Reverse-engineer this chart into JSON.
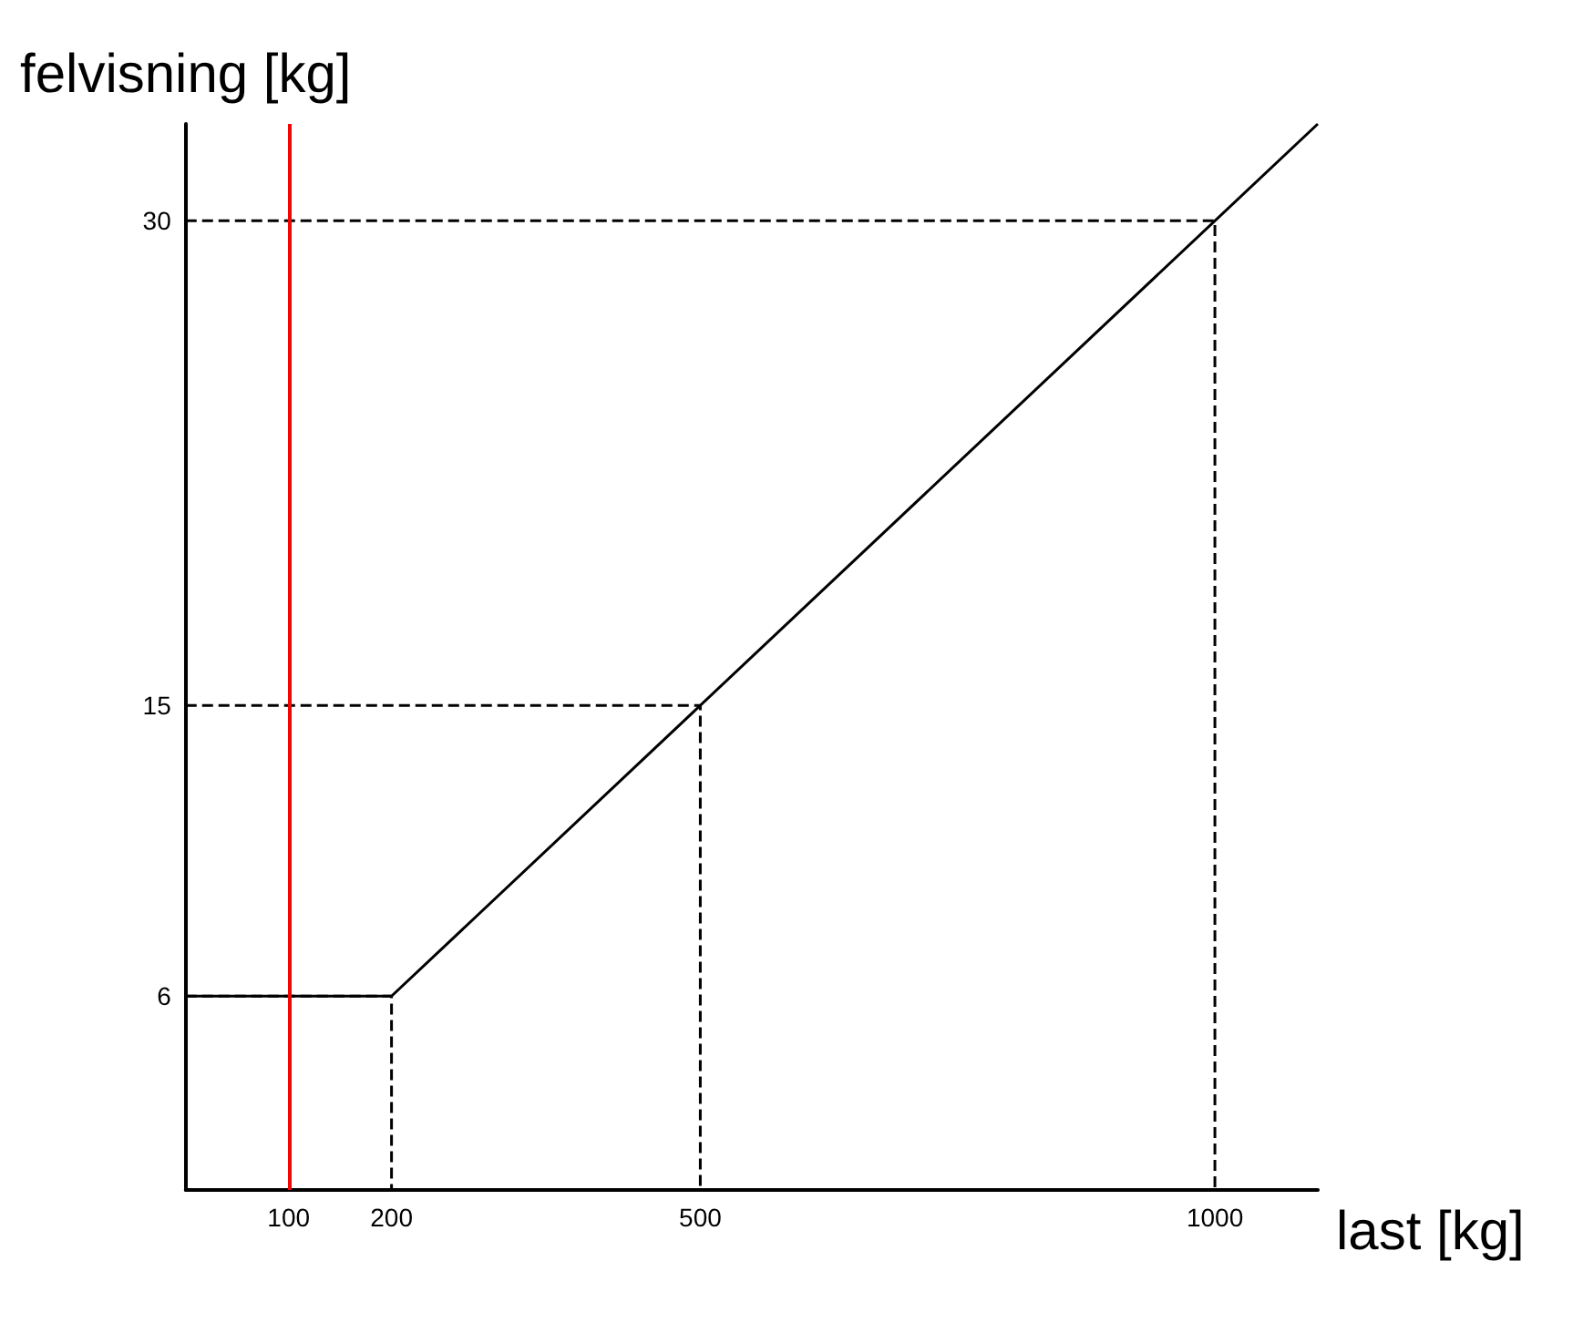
{
  "chart_data": {
    "type": "line",
    "xlabel": "last [kg]",
    "ylabel": "felvisning [kg]",
    "xlim": [
      0,
      1100
    ],
    "ylim": [
      0,
      33
    ],
    "xticks": [
      100,
      200,
      500,
      1000
    ],
    "yticks": [
      6,
      15,
      30
    ],
    "grid": false,
    "marker": "none",
    "series": [
      {
        "color": "#000000",
        "x": [
          0,
          200,
          1100
        ],
        "values": [
          6,
          6,
          33
        ]
      },
      {
        "color": "#000000",
        "line_style": "dashed",
        "x": [
          0,
          200,
          200
        ],
        "values": [
          6,
          6,
          0
        ]
      },
      {
        "color": "#000000",
        "line_style": "dashed",
        "x": [
          0,
          500,
          500
        ],
        "values": [
          15,
          15,
          0
        ]
      },
      {
        "color": "#000000",
        "line_style": "dashed",
        "x": [
          0,
          1000,
          1000
        ],
        "values": [
          30,
          30,
          0
        ]
      }
    ],
    "ref_lines": [
      {
        "axis": "x",
        "value": 100,
        "color": "#ff0000"
      }
    ]
  }
}
